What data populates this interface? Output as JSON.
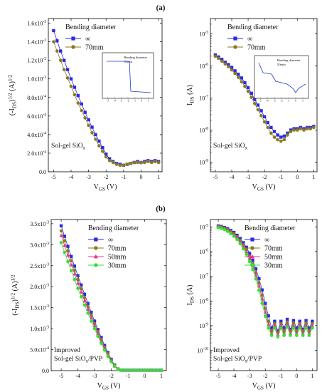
{
  "figure": {
    "label_a": "(a)",
    "label_b": "(b)"
  },
  "colors": {
    "inf": "#2a2ae6",
    "70mm": "#8a7a1e",
    "50mm": "#e8338f",
    "30mm": "#33e033"
  },
  "chart_data": [
    {
      "id": "a-left",
      "type": "scatter",
      "panel": "(a)",
      "xlabel": "V_GS (V)",
      "ylabel": "(-I_DS)^1/2 (A)^1/2",
      "xlim": [
        -5.3,
        1.2
      ],
      "ylim": [
        0,
        0.00165
      ],
      "x_ticks": [
        -5,
        -4,
        -3,
        -2,
        -1,
        0,
        1
      ],
      "y_ticks": [
        0,
        0.0002,
        0.0004,
        0.0006,
        0.0008,
        0.001,
        0.0012,
        0.0014,
        0.0016
      ],
      "y_tick_labels": [
        "0.0",
        "2.0x10-4",
        "4.0x10-4",
        "6.0x10-4",
        "8.0x10-4",
        "1.0x10-3",
        "1.2x10-3",
        "1.4x10-3",
        "1.6x10-3"
      ],
      "legend_title": "Bending diameter",
      "annotation": "Sol-gel SiOx",
      "series": [
        {
          "name": "∞",
          "color_key": "inf",
          "marker": "square",
          "x": [
            -5.0,
            -4.8,
            -4.6,
            -4.4,
            -4.2,
            -4.0,
            -3.8,
            -3.6,
            -3.4,
            -3.2,
            -3.0,
            -2.8,
            -2.6,
            -2.4,
            -2.2,
            -2.0,
            -1.8,
            -1.6,
            -1.4,
            -1.2,
            -1.0,
            -0.8,
            -0.6,
            -0.4,
            -0.2,
            0.0,
            0.2,
            0.4,
            0.6,
            0.8,
            1.0
          ],
          "y": [
            0.00152,
            0.00141,
            0.0013,
            0.0012,
            0.0011,
            0.001,
            0.00091,
            0.00082,
            0.00073,
            0.00064,
            0.00056,
            0.00048,
            0.0004,
            0.00033,
            0.00026,
            0.00019,
            0.00014,
            0.00011,
            9e-05,
            8e-05,
            7e-05,
            8e-05,
            9e-05,
            0.0001,
            0.00011,
            0.0001,
            0.00011,
            0.00012,
            0.00011,
            0.00012,
            0.00011
          ]
        },
        {
          "name": "70mm",
          "color_key": "70mm",
          "marker": "circle",
          "x": [
            -5.0,
            -4.8,
            -4.6,
            -4.4,
            -4.2,
            -4.0,
            -3.8,
            -3.6,
            -3.4,
            -3.2,
            -3.0,
            -2.8,
            -2.6,
            -2.4,
            -2.2,
            -2.0,
            -1.8,
            -1.6,
            -1.4,
            -1.2,
            -1.0,
            -0.8,
            -0.6,
            -0.4,
            -0.2,
            0.0,
            0.2,
            0.4,
            0.6,
            0.8,
            1.0
          ],
          "y": [
            0.0014,
            0.0013,
            0.0012,
            0.0011,
            0.00101,
            0.00092,
            0.00083,
            0.00074,
            0.00066,
            0.00058,
            0.0005,
            0.00042,
            0.00035,
            0.00028,
            0.00022,
            0.00016,
            0.00012,
            0.0001,
            8e-05,
            7e-05,
            7e-05,
            8e-05,
            9e-05,
            0.0001,
            0.0001,
            0.0001,
            0.0001,
            0.00011,
            0.0001,
            0.00011,
            0.0001
          ]
        }
      ],
      "inset": {
        "note": "Bending diameter\n30min",
        "x_ticks": [
          -5,
          -4,
          -3,
          -2,
          -1,
          0,
          1
        ]
      }
    },
    {
      "id": "a-right",
      "type": "scatter",
      "panel": "(a)",
      "xlabel": "V_GS (V)",
      "ylabel": "I_DS (A)",
      "yscale": "log",
      "xlim": [
        -5.3,
        1.2
      ],
      "ylim": [
        5e-10,
        3e-05
      ],
      "x_ticks": [
        -5,
        -4,
        -3,
        -2,
        -1,
        0,
        1
      ],
      "y_ticks": [
        1e-09,
        1e-08,
        1e-07,
        1e-06,
        1e-05
      ],
      "y_tick_labels": [
        "10-9",
        "10-8",
        "10-7",
        "10-6",
        "10-5"
      ],
      "legend_title": "Bending diameter",
      "annotation": "Sol-gel SiOx",
      "series": [
        {
          "name": "∞",
          "color_key": "inf",
          "marker": "square",
          "x": [
            -5.0,
            -4.8,
            -4.6,
            -4.4,
            -4.2,
            -4.0,
            -3.8,
            -3.6,
            -3.4,
            -3.2,
            -3.0,
            -2.8,
            -2.6,
            -2.4,
            -2.2,
            -2.0,
            -1.8,
            -1.6,
            -1.4,
            -1.2,
            -1.0,
            -0.8,
            -0.6,
            -0.4,
            -0.2,
            0.0,
            0.2,
            0.4,
            0.6,
            0.8,
            1.0
          ],
          "y": [
            2.2e-06,
            1.9e-06,
            1.6e-06,
            1.3e-06,
            1.1e-06,
            9e-07,
            7e-07,
            5.5e-07,
            4.2e-07,
            3e-07,
            2.1e-07,
            1.4e-07,
            9e-08,
            6e-08,
            4e-08,
            2.6e-08,
            1.7e-08,
            1.2e-08,
            9e-09,
            7e-09,
            6e-09,
            6.5e-09,
            8e-09,
            1e-08,
            1.1e-08,
            1.1e-08,
            1.2e-08,
            1.1e-08,
            1.2e-08,
            1.2e-08,
            1.3e-08
          ]
        },
        {
          "name": "70mm",
          "color_key": "70mm",
          "marker": "circle",
          "x": [
            -5.0,
            -4.8,
            -4.6,
            -4.4,
            -4.2,
            -4.0,
            -3.8,
            -3.6,
            -3.4,
            -3.2,
            -3.0,
            -2.8,
            -2.6,
            -2.4,
            -2.2,
            -2.0,
            -1.8,
            -1.6,
            -1.4,
            -1.2,
            -1.0,
            -0.8,
            -0.6,
            -0.4,
            -0.2,
            0.0,
            0.2,
            0.4,
            0.6,
            0.8,
            1.0
          ],
          "y": [
            2e-06,
            1.7e-06,
            1.4e-06,
            1.15e-06,
            9.5e-07,
            7.5e-07,
            5.8e-07,
            4.4e-07,
            3.2e-07,
            2.3e-07,
            1.6e-07,
            1.05e-07,
            6.7e-08,
            4.3e-08,
            2.8e-08,
            1.8e-08,
            1.2e-08,
            8e-09,
            6e-09,
            5e-09,
            4.5e-09,
            5e-09,
            7e-09,
            9e-09,
            1e-08,
            1e-08,
            1.1e-08,
            1e-08,
            1.1e-08,
            1.1e-08,
            1.2e-08
          ]
        }
      ],
      "inset": {
        "note": "Bending diameter\n50min",
        "x_ticks": [
          -5,
          -4,
          -3,
          -2,
          -1,
          0,
          1
        ]
      }
    },
    {
      "id": "b-left",
      "type": "scatter",
      "panel": "(b)",
      "xlabel": "V_GS (V)",
      "ylabel": "(-I_DS)^1/2 (A)^1/2",
      "xlim": [
        -5.6,
        1.3
      ],
      "ylim": [
        0,
        0.0036
      ],
      "x_ticks": [
        -5,
        -4,
        -3,
        -2,
        -1,
        0,
        1
      ],
      "y_ticks": [
        0,
        0.0005,
        0.001,
        0.0015,
        0.002,
        0.0025,
        0.003,
        0.0035
      ],
      "y_tick_labels": [
        "0.0",
        "5.0x10-4",
        "1.0x10-3",
        "1.5x10-3",
        "2.0x10-3",
        "2.5x10-3",
        "3.0x10-3",
        "3.5x10-3"
      ],
      "legend_title": "Bending diameter",
      "annotation": "Improved\nSol-gel SiOx/PVP",
      "series": [
        {
          "name": "∞",
          "color_key": "inf",
          "marker": "square",
          "x": [
            -5.0,
            -4.8,
            -4.6,
            -4.4,
            -4.2,
            -4.0,
            -3.8,
            -3.6,
            -3.4,
            -3.2,
            -3.0,
            -2.8,
            -2.6,
            -2.4,
            -2.2,
            -2.0,
            -1.8,
            -1.6,
            -1.4,
            -1.2,
            -1.0,
            -0.8,
            -0.6,
            -0.4,
            -0.2,
            0.0,
            0.2,
            0.4,
            0.6,
            0.8,
            1.0
          ],
          "y": [
            0.00345,
            0.0032,
            0.00296,
            0.00272,
            0.00249,
            0.00226,
            0.00204,
            0.00182,
            0.0016,
            0.00139,
            0.00118,
            0.00098,
            0.00079,
            0.0006,
            0.00043,
            0.00027,
            0.00013,
            4e-05,
            1e-05,
            1e-05,
            1e-05,
            1e-05,
            1e-05,
            1e-05,
            1e-05,
            1e-05,
            1e-05,
            1e-05,
            1e-05,
            1e-05,
            1e-05
          ]
        },
        {
          "name": "70mm",
          "color_key": "70mm",
          "marker": "circle",
          "x": [
            -5.0,
            -4.8,
            -4.6,
            -4.4,
            -4.2,
            -4.0,
            -3.8,
            -3.6,
            -3.4,
            -3.2,
            -3.0,
            -2.8,
            -2.6,
            -2.4,
            -2.2,
            -2.0,
            -1.8,
            -1.6,
            -1.4,
            -1.2,
            -1.0,
            -0.8,
            -0.6,
            -0.4,
            -0.2,
            0.0,
            0.2,
            0.4,
            0.6,
            0.8,
            1.0
          ],
          "y": [
            0.00333,
            0.00309,
            0.00285,
            0.00262,
            0.00239,
            0.00217,
            0.00195,
            0.00174,
            0.00153,
            0.00132,
            0.00112,
            0.00093,
            0.00074,
            0.00056,
            0.0004,
            0.00025,
            0.00012,
            4e-05,
            1e-05,
            1e-05,
            1e-05,
            1e-05,
            1e-05,
            1e-05,
            1e-05,
            1e-05,
            1e-05,
            1e-05,
            1e-05,
            1e-05,
            1e-05
          ]
        },
        {
          "name": "50mm",
          "color_key": "50mm",
          "marker": "triangle",
          "x": [
            -5.0,
            -4.8,
            -4.6,
            -4.4,
            -4.2,
            -4.0,
            -3.8,
            -3.6,
            -3.4,
            -3.2,
            -3.0,
            -2.8,
            -2.6,
            -2.4,
            -2.2,
            -2.0,
            -1.8,
            -1.6,
            -1.4,
            -1.2,
            -1.0,
            -0.8,
            -0.6,
            -0.4,
            -0.2,
            0.0,
            0.2,
            0.4,
            0.6,
            0.8,
            1.0
          ],
          "y": [
            0.00322,
            0.00298,
            0.00275,
            0.00252,
            0.0023,
            0.00208,
            0.00187,
            0.00166,
            0.00146,
            0.00126,
            0.00107,
            0.00088,
            0.0007,
            0.00053,
            0.00037,
            0.00023,
            0.00011,
            3e-05,
            1e-05,
            1e-05,
            1e-05,
            1e-05,
            1e-05,
            1e-05,
            1e-05,
            1e-05,
            1e-05,
            1e-05,
            1e-05,
            1e-05,
            1e-05
          ]
        },
        {
          "name": "30mm",
          "color_key": "30mm",
          "marker": "circle",
          "x": [
            -5.0,
            -4.8,
            -4.6,
            -4.4,
            -4.2,
            -4.0,
            -3.8,
            -3.6,
            -3.4,
            -3.2,
            -3.0,
            -2.8,
            -2.6,
            -2.4,
            -2.2,
            -2.0,
            -1.8,
            -1.6,
            -1.4,
            -1.2,
            -1.0,
            -0.8,
            -0.6,
            -0.4,
            -0.2,
            0.0,
            0.2,
            0.4,
            0.6,
            0.8,
            1.0
          ],
          "y": [
            0.00305,
            0.00282,
            0.0026,
            0.00238,
            0.00217,
            0.00196,
            0.00176,
            0.00156,
            0.00137,
            0.00118,
            0.001,
            0.00082,
            0.00065,
            0.00049,
            0.00034,
            0.00021,
            0.0001,
            3e-05,
            1e-05,
            1e-05,
            1e-05,
            1e-05,
            1e-05,
            1e-05,
            1e-05,
            1e-05,
            1e-05,
            1e-05,
            1e-05,
            1e-05,
            1e-05
          ]
        }
      ]
    },
    {
      "id": "b-right",
      "type": "scatter",
      "panel": "(b)",
      "xlabel": "V_GS (V)",
      "ylabel": "I_DS (A)",
      "yscale": "log",
      "xlim": [
        -5.5,
        1.3
      ],
      "ylim": [
        1.5e-11,
        2e-05
      ],
      "x_ticks": [
        -5,
        -4,
        -3,
        -2,
        -1,
        0,
        1
      ],
      "y_ticks": [
        1e-10,
        1e-09,
        1e-08,
        1e-07,
        1e-06,
        1e-05
      ],
      "y_tick_labels": [
        "10-10",
        "10-9",
        "10-8",
        "10-7",
        "10-6",
        "10-5"
      ],
      "legend_title": "Bending diameter",
      "annotation": "Improved\nSol-gel SiOx/PVP",
      "series": [
        {
          "name": "∞",
          "color_key": "inf",
          "marker": "square",
          "x": [
            -5.0,
            -4.8,
            -4.6,
            -4.4,
            -4.2,
            -4.0,
            -3.8,
            -3.6,
            -3.4,
            -3.2,
            -3.0,
            -2.8,
            -2.6,
            -2.4,
            -2.2,
            -2.0,
            -1.8,
            -1.6,
            -1.4,
            -1.2,
            -1.0,
            -0.8,
            -0.6,
            -0.4,
            -0.2,
            0.0,
            0.2,
            0.4,
            0.6,
            0.8,
            1.0
          ],
          "y": [
            1.1e-05,
            1.05e-05,
            9.5e-06,
            8.5e-06,
            7.2e-06,
            6e-06,
            4.6e-06,
            3.4e-06,
            2.3e-06,
            1.5e-06,
            8.5e-07,
            4.5e-07,
            2e-07,
            8e-08,
            2.8e-08,
            8e-09,
            2.5e-09,
            8e-10,
            1.5e-09,
            6e-10,
            1.5e-09,
            8e-10,
            1.8e-09,
            7e-10,
            1.6e-09,
            8e-10,
            1.5e-09,
            7e-10,
            1.6e-09,
            8e-10,
            1.5e-09
          ]
        },
        {
          "name": "70mm",
          "color_key": "70mm",
          "marker": "circle",
          "x": [
            -5.0,
            -4.8,
            -4.6,
            -4.4,
            -4.2,
            -4.0,
            -3.8,
            -3.6,
            -3.4,
            -3.2,
            -3.0,
            -2.8,
            -2.6,
            -2.4,
            -2.2,
            -2.0,
            -1.8,
            -1.6,
            -1.4,
            -1.2,
            -1.0,
            -0.8,
            -0.6,
            -0.4,
            -0.2,
            0.0,
            0.2,
            0.4,
            0.6,
            0.8,
            1.0
          ],
          "y": [
            1.05e-05,
            1e-05,
            9e-06,
            7.8e-06,
            6.5e-06,
            5.3e-06,
            4e-06,
            2.9e-06,
            1.9e-06,
            1.2e-06,
            6.5e-07,
            3.3e-07,
            1.4e-07,
            5.3e-08,
            1.7e-08,
            5e-09,
            1.5e-09,
            6e-10,
            1.2e-09,
            5e-10,
            1.2e-09,
            6e-10,
            1.4e-09,
            6e-10,
            1.3e-09,
            6e-10,
            1.2e-09,
            6e-10,
            1.3e-09,
            6e-10,
            1.2e-09
          ]
        },
        {
          "name": "50mm",
          "color_key": "50mm",
          "marker": "triangle",
          "x": [
            -5.0,
            -4.8,
            -4.6,
            -4.4,
            -4.2,
            -4.0,
            -3.8,
            -3.6,
            -3.4,
            -3.2,
            -3.0,
            -2.8,
            -2.6,
            -2.4,
            -2.2,
            -2.0,
            -1.8,
            -1.6,
            -1.4,
            -1.2,
            -1.0,
            -0.8,
            -0.6,
            -0.4,
            -0.2,
            0.0,
            0.2,
            0.4,
            0.6,
            0.8,
            1.0
          ],
          "y": [
            1e-05,
            9.4e-06,
            8.4e-06,
            7.2e-06,
            6e-06,
            4.8e-06,
            3.6e-06,
            2.5e-06,
            1.6e-06,
            1e-06,
            5.3e-07,
            2.6e-07,
            1.1e-07,
            4e-08,
            1.2e-08,
            3.5e-09,
            1.1e-09,
            5e-10,
            1e-09,
            4.5e-10,
            1e-09,
            5e-10,
            1.1e-09,
            5e-10,
            1e-09,
            5e-10,
            1e-09,
            5e-10,
            1e-09,
            5e-10,
            1e-09
          ]
        },
        {
          "name": "30mm",
          "color_key": "30mm",
          "marker": "circle",
          "x": [
            -5.0,
            -4.8,
            -4.6,
            -4.4,
            -4.2,
            -4.0,
            -3.8,
            -3.6,
            -3.4,
            -3.2,
            -3.0,
            -2.8,
            -2.6,
            -2.4,
            -2.2,
            -2.0,
            -1.8,
            -1.6,
            -1.4,
            -1.2,
            -1.0,
            -0.8,
            -0.6,
            -0.4,
            -0.2,
            0.0,
            0.2,
            0.4,
            0.6,
            0.8,
            1.0
          ],
          "y": [
            9.5e-06,
            8.8e-06,
            7.8e-06,
            6.6e-06,
            5.4e-06,
            4.2e-06,
            3.1e-06,
            2.1e-06,
            1.3e-06,
            7.8e-07,
            4e-07,
            1.9e-07,
            7.8e-08,
            2.7e-08,
            8e-09,
            2.4e-09,
            8e-10,
            4e-10,
            8e-10,
            3.5e-10,
            8e-10,
            4e-10,
            9e-10,
            4e-10,
            8e-10,
            4e-10,
            8e-10,
            4e-10,
            8e-10,
            4e-10,
            8e-10
          ]
        }
      ]
    }
  ]
}
